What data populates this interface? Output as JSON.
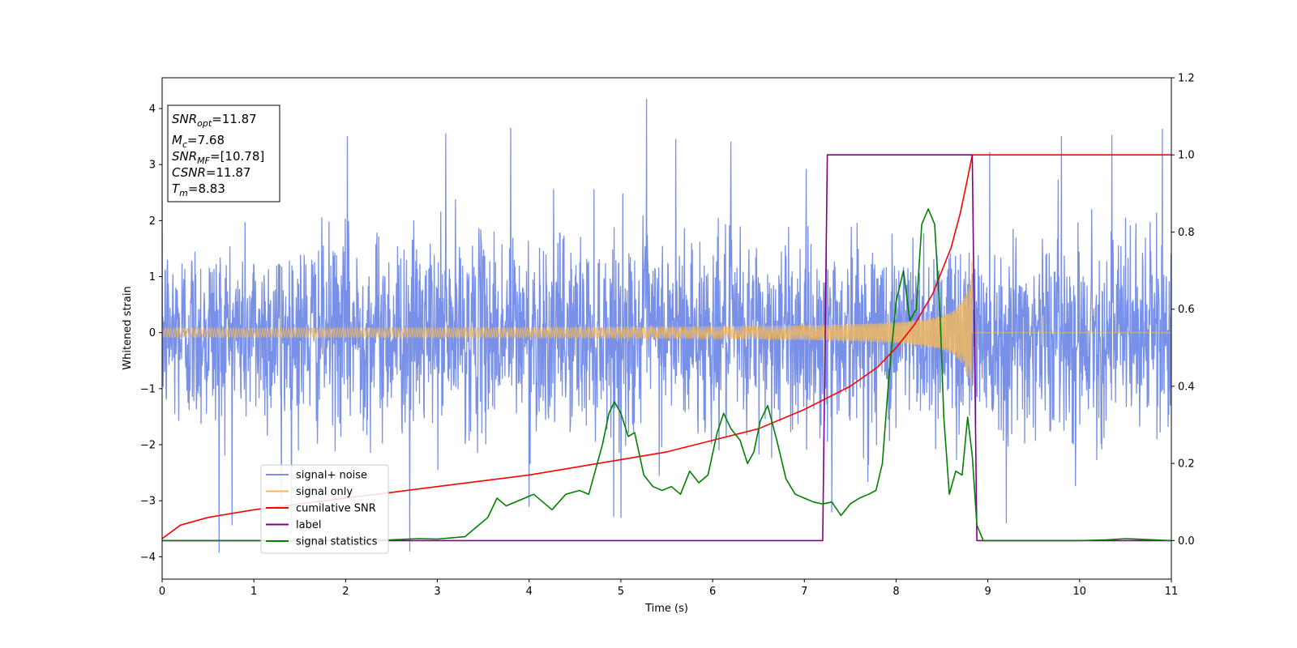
{
  "chart_data": {
    "type": "line",
    "xlabel": "Time (s)",
    "ylabel": "Whitened strain",
    "xlim": [
      0,
      11
    ],
    "ylim": [
      -4.4,
      4.55
    ],
    "y2lim": [
      -0.1,
      1.2
    ],
    "xticks": [
      0,
      1,
      2,
      3,
      4,
      5,
      6,
      7,
      8,
      9,
      10,
      11
    ],
    "yticks": [
      -4,
      -3,
      -2,
      -1,
      0,
      1,
      2,
      3,
      4
    ],
    "y2ticks": [
      0.0,
      0.2,
      0.4,
      0.6,
      0.8,
      1.0,
      1.2
    ],
    "y2tick_labels": [
      "0.0",
      "0.2",
      "0.4",
      "0.6",
      "0.8",
      "1.0",
      "1.2"
    ],
    "grid": false,
    "legend_position": "bottom-left",
    "series": [
      {
        "name": "signal+ noise",
        "axis": "left",
        "color": "#7890e8",
        "kind": "noise",
        "noise_sigma": 0.85,
        "noise_clip": 4.2,
        "num_samples": 2800,
        "spikes": [
          [
            0.62,
            -3.92
          ],
          [
            2.02,
            3.5
          ],
          [
            2.7,
            -3.9
          ],
          [
            3.09,
            3.55
          ],
          [
            3.8,
            3.65
          ],
          [
            5.28,
            4.17
          ],
          [
            5.6,
            3.45
          ],
          [
            6.2,
            3.4
          ],
          [
            9.02,
            3.22
          ],
          [
            9.8,
            3.5
          ],
          [
            10.35,
            3.52
          ],
          [
            10.9,
            3.63
          ],
          [
            1.3,
            -3.0
          ],
          [
            4.0,
            -3.1
          ],
          [
            5.0,
            -3.3
          ],
          [
            7.3,
            -3.2
          ],
          [
            9.2,
            -3.4
          ]
        ]
      },
      {
        "name": "signal only",
        "axis": "left",
        "color": "#f0b860",
        "kind": "chirp",
        "merger_time": 8.83,
        "amplitude_at_start": 0.07,
        "amplitude_at_merger": 1.35
      },
      {
        "name": "cumilative SNR",
        "axis": "right",
        "color": "#ff0000",
        "points": [
          [
            0.0,
            0.005
          ],
          [
            0.2,
            0.04
          ],
          [
            0.5,
            0.06
          ],
          [
            1.0,
            0.08
          ],
          [
            1.5,
            0.095
          ],
          [
            2.0,
            0.11
          ],
          [
            2.5,
            0.125
          ],
          [
            3.0,
            0.14
          ],
          [
            3.5,
            0.155
          ],
          [
            4.0,
            0.17
          ],
          [
            4.5,
            0.19
          ],
          [
            5.0,
            0.21
          ],
          [
            5.5,
            0.23
          ],
          [
            6.0,
            0.26
          ],
          [
            6.5,
            0.29
          ],
          [
            7.0,
            0.34
          ],
          [
            7.5,
            0.4
          ],
          [
            7.8,
            0.45
          ],
          [
            8.0,
            0.5
          ],
          [
            8.2,
            0.56
          ],
          [
            8.4,
            0.64
          ],
          [
            8.6,
            0.76
          ],
          [
            8.7,
            0.85
          ],
          [
            8.78,
            0.94
          ],
          [
            8.83,
            1.0
          ],
          [
            11.0,
            1.0
          ]
        ]
      },
      {
        "name": "label",
        "axis": "right",
        "color": "#800080",
        "points": [
          [
            0.0,
            0.0
          ],
          [
            7.2,
            0.0
          ],
          [
            7.25,
            1.0
          ],
          [
            8.83,
            1.0
          ],
          [
            8.88,
            0.0
          ],
          [
            11.0,
            0.0
          ]
        ]
      },
      {
        "name": "signal statistics",
        "axis": "right",
        "color": "#008000",
        "points": [
          [
            0.0,
            0.0
          ],
          [
            0.5,
            0.0
          ],
          [
            1.0,
            0.0
          ],
          [
            1.5,
            0.0
          ],
          [
            2.0,
            0.0
          ],
          [
            2.5,
            0.002
          ],
          [
            2.8,
            0.005
          ],
          [
            3.0,
            0.004
          ],
          [
            3.3,
            0.01
          ],
          [
            3.4,
            0.03
          ],
          [
            3.55,
            0.06
          ],
          [
            3.65,
            0.11
          ],
          [
            3.75,
            0.09
          ],
          [
            3.85,
            0.1
          ],
          [
            3.95,
            0.11
          ],
          [
            4.05,
            0.12
          ],
          [
            4.15,
            0.1
          ],
          [
            4.25,
            0.08
          ],
          [
            4.4,
            0.12
          ],
          [
            4.55,
            0.13
          ],
          [
            4.65,
            0.12
          ],
          [
            4.72,
            0.18
          ],
          [
            4.8,
            0.25
          ],
          [
            4.87,
            0.33
          ],
          [
            4.93,
            0.36
          ],
          [
            5.0,
            0.33
          ],
          [
            5.08,
            0.27
          ],
          [
            5.15,
            0.28
          ],
          [
            5.25,
            0.17
          ],
          [
            5.35,
            0.14
          ],
          [
            5.45,
            0.13
          ],
          [
            5.55,
            0.14
          ],
          [
            5.65,
            0.12
          ],
          [
            5.75,
            0.18
          ],
          [
            5.85,
            0.15
          ],
          [
            5.95,
            0.17
          ],
          [
            6.05,
            0.28
          ],
          [
            6.12,
            0.33
          ],
          [
            6.2,
            0.29
          ],
          [
            6.3,
            0.26
          ],
          [
            6.38,
            0.2
          ],
          [
            6.45,
            0.23
          ],
          [
            6.52,
            0.31
          ],
          [
            6.6,
            0.35
          ],
          [
            6.7,
            0.26
          ],
          [
            6.8,
            0.16
          ],
          [
            6.9,
            0.12
          ],
          [
            7.0,
            0.11
          ],
          [
            7.1,
            0.1
          ],
          [
            7.2,
            0.095
          ],
          [
            7.3,
            0.1
          ],
          [
            7.4,
            0.065
          ],
          [
            7.5,
            0.095
          ],
          [
            7.6,
            0.11
          ],
          [
            7.7,
            0.12
          ],
          [
            7.78,
            0.13
          ],
          [
            7.85,
            0.2
          ],
          [
            7.92,
            0.42
          ],
          [
            8.0,
            0.62
          ],
          [
            8.08,
            0.7
          ],
          [
            8.15,
            0.57
          ],
          [
            8.22,
            0.6
          ],
          [
            8.28,
            0.82
          ],
          [
            8.35,
            0.86
          ],
          [
            8.42,
            0.82
          ],
          [
            8.48,
            0.58
          ],
          [
            8.52,
            0.32
          ],
          [
            8.58,
            0.12
          ],
          [
            8.65,
            0.18
          ],
          [
            8.72,
            0.17
          ],
          [
            8.78,
            0.32
          ],
          [
            8.83,
            0.22
          ],
          [
            8.88,
            0.04
          ],
          [
            8.95,
            0.0
          ],
          [
            9.5,
            0.0
          ],
          [
            10.0,
            0.0
          ],
          [
            10.3,
            0.002
          ],
          [
            10.5,
            0.005
          ],
          [
            10.8,
            0.002
          ],
          [
            11.0,
            0.0
          ]
        ]
      }
    ],
    "annotation": {
      "lines": [
        {
          "main": "SNR",
          "sub": "opt",
          "rest": "=11.87"
        },
        {
          "main": "M",
          "sub": "c",
          "rest": "=7.68"
        },
        {
          "main": "SNR",
          "sub": "MF",
          "rest": "=[10.78]"
        },
        {
          "main": "CSNR",
          "sub": "",
          "rest": "=11.87"
        },
        {
          "main": "T",
          "sub": "m",
          "rest": "=8.83"
        }
      ]
    }
  }
}
